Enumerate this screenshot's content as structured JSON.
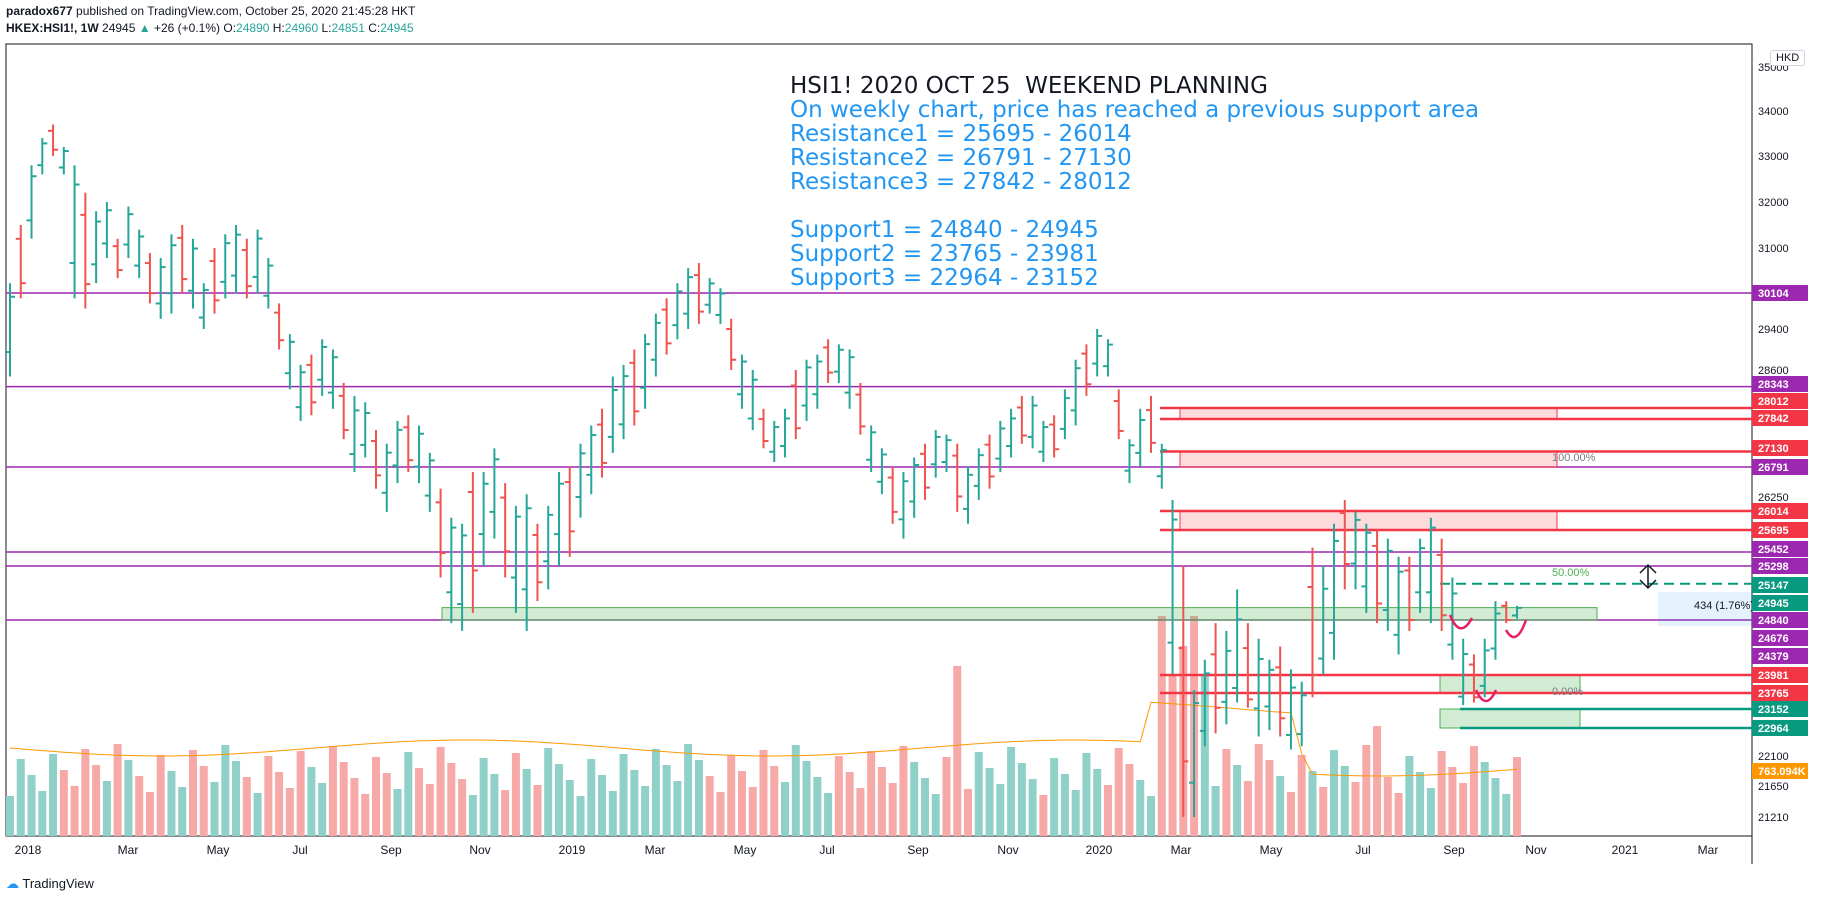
{
  "header": {
    "author": "paradox677",
    "published_text": "published on TradingView.com, October 25, 2020 21:45:28 HKT",
    "symbol": "HKEX:HSI1!, 1W",
    "last": "24945",
    "arrow": "▲",
    "change": "+26 (+0.1%)",
    "open_label": "O:",
    "open": "24890",
    "high_label": "H:",
    "high": "24960",
    "low_label": "L:",
    "low": "24851",
    "close_label": "C:",
    "close": "24945"
  },
  "annotation": {
    "title": "HSI1! 2020 OCT 25  WEEKEND PLANNING",
    "line1": "On weekly chart, price has reached a previous support area",
    "r1": "Resistance1 = 25695 - 26014",
    "r2": "Resistance2 = 26791 - 27130",
    "r3": "Resistance3 = 27842 - 28012",
    "s1": "Support1 = 24840 - 24945",
    "s2": "Support2 = 23765 - 23981",
    "s3": "Support3 = 22964 - 23152"
  },
  "currency_badge": "HKD",
  "footer": {
    "brand": "TradingView"
  },
  "colors": {
    "up": "#26a69a",
    "down": "#ef5350",
    "purple": "#9c27b0",
    "resistance": "#f23645",
    "support": "#089981",
    "volume_up": "#8fd1c8",
    "volume_down": "#f7a9a7",
    "volume_ma": "#ff9800"
  },
  "chart_data": {
    "type": "ohlc",
    "title": "HKEX:HSI1!, 1W",
    "x_tick_labels": [
      "2018",
      "Mar",
      "May",
      "Jul",
      "Sep",
      "Nov",
      "2019",
      "Mar",
      "May",
      "Jul",
      "Sep",
      "Nov",
      "2020",
      "Mar",
      "May",
      "Jul",
      "Sep",
      "Nov",
      "2021",
      "Mar"
    ],
    "y_tick_labels": [
      "35000",
      "34000",
      "33000",
      "32000",
      "31000",
      "30104",
      "29400",
      "28600",
      "27842",
      "26791",
      "26250",
      "25695",
      "25298",
      "24840",
      "24379",
      "23981",
      "23765",
      "23152",
      "22964",
      "22100",
      "21650",
      "21210"
    ],
    "price_axis_badges": [
      {
        "label": "30104",
        "color": "#9c27b0"
      },
      {
        "label": "28343",
        "color": "#9c27b0"
      },
      {
        "label": "28012",
        "color": "#f23645"
      },
      {
        "label": "27842",
        "color": "#f23645"
      },
      {
        "label": "27130",
        "color": "#f23645"
      },
      {
        "label": "26791",
        "color": "#9c27b0"
      },
      {
        "label": "26014",
        "color": "#f23645"
      },
      {
        "label": "25695",
        "color": "#f23645"
      },
      {
        "label": "25452",
        "color": "#9c27b0"
      },
      {
        "label": "25298",
        "color": "#9c27b0"
      },
      {
        "label": "25147",
        "color": "#089981"
      },
      {
        "label": "24945",
        "color": "#089981"
      },
      {
        "label": "24840",
        "color": "#9c27b0"
      },
      {
        "label": "24676",
        "color": "#9c27b0"
      },
      {
        "label": "24379",
        "color": "#9c27b0"
      },
      {
        "label": "23981",
        "color": "#f23645"
      },
      {
        "label": "23765",
        "color": "#f23645"
      },
      {
        "label": "23152",
        "color": "#089981"
      },
      {
        "label": "22964",
        "color": "#089981"
      },
      {
        "label": "763.094K",
        "color": "#ff9800"
      }
    ],
    "horizontal_levels": [
      30104,
      28343,
      26791,
      25452,
      25298,
      24840
    ],
    "resistance_zones": [
      [
        25695,
        26014
      ],
      [
        26791,
        27130
      ],
      [
        27842,
        28012
      ]
    ],
    "support_zones": [
      [
        24840,
        24945
      ],
      [
        23765,
        23981
      ],
      [
        22964,
        23152
      ]
    ],
    "fib_labels": [
      "100.00%",
      "50.00%",
      "0.00%"
    ],
    "measure_label": "434 (1.76%)",
    "last_price": 24945,
    "volume_ma_label": "763.094K",
    "ohlc_path": [
      [
        28500,
        30300
      ],
      [
        30000,
        31500
      ],
      [
        31200,
        32800
      ],
      [
        32600,
        33400
      ],
      [
        33000,
        33700
      ],
      [
        32600,
        33200
      ],
      [
        30000,
        32800
      ],
      [
        29800,
        32200
      ],
      [
        30300,
        31800
      ],
      [
        30800,
        32000
      ],
      [
        30400,
        31200
      ],
      [
        30800,
        31900
      ],
      [
        30400,
        31400
      ],
      [
        29900,
        30900
      ],
      [
        29600,
        30800
      ],
      [
        29700,
        31300
      ],
      [
        30100,
        31500
      ],
      [
        29800,
        31200
      ],
      [
        29400,
        30300
      ],
      [
        29700,
        31000
      ],
      [
        30000,
        31300
      ],
      [
        30100,
        31500
      ],
      [
        30000,
        31200
      ],
      [
        30100,
        31400
      ],
      [
        29800,
        30800
      ],
      [
        29000,
        29900
      ],
      [
        28300,
        29300
      ],
      [
        27800,
        28700
      ],
      [
        27900,
        28900
      ],
      [
        28200,
        29200
      ],
      [
        28000,
        29000
      ],
      [
        27400,
        28400
      ],
      [
        26700,
        28200
      ],
      [
        27000,
        28100
      ],
      [
        26400,
        27600
      ],
      [
        26000,
        27300
      ],
      [
        26500,
        27800
      ],
      [
        26700,
        27900
      ],
      [
        26500,
        27700
      ],
      [
        26000,
        27100
      ],
      [
        25200,
        26400
      ],
      [
        24800,
        25900
      ],
      [
        24700,
        25800
      ],
      [
        24900,
        26700
      ],
      [
        25300,
        26700
      ],
      [
        25600,
        27200
      ],
      [
        25200,
        26500
      ],
      [
        24900,
        26100
      ],
      [
        24700,
        26300
      ],
      [
        25000,
        25800
      ],
      [
        25100,
        26100
      ],
      [
        25300,
        26700
      ],
      [
        25400,
        26800
      ],
      [
        25900,
        27300
      ],
      [
        26300,
        27700
      ],
      [
        26600,
        28000
      ],
      [
        27100,
        28500
      ],
      [
        27400,
        28700
      ],
      [
        27700,
        29000
      ],
      [
        28000,
        29300
      ],
      [
        28500,
        29700
      ],
      [
        28900,
        30000
      ],
      [
        29200,
        30300
      ],
      [
        29400,
        30600
      ],
      [
        29500,
        30700
      ],
      [
        29700,
        30400
      ],
      [
        29500,
        30200
      ],
      [
        28600,
        29600
      ],
      [
        28000,
        28900
      ],
      [
        27600,
        28600
      ],
      [
        27200,
        28000
      ],
      [
        26900,
        27800
      ],
      [
        27000,
        28000
      ],
      [
        27400,
        28600
      ],
      [
        27800,
        28800
      ],
      [
        28000,
        28900
      ],
      [
        28400,
        29200
      ],
      [
        28400,
        29100
      ],
      [
        28000,
        29000
      ],
      [
        27500,
        28400
      ],
      [
        26700,
        27700
      ],
      [
        26300,
        27200
      ],
      [
        25800,
        26800
      ],
      [
        25600,
        26700
      ],
      [
        25900,
        27000
      ],
      [
        26200,
        27300
      ],
      [
        26600,
        27600
      ],
      [
        26700,
        27500
      ],
      [
        26000,
        27300
      ],
      [
        25800,
        26800
      ],
      [
        26200,
        27200
      ],
      [
        26400,
        27500
      ],
      [
        26700,
        27800
      ],
      [
        27000,
        28000
      ],
      [
        27300,
        28200
      ],
      [
        27200,
        28200
      ],
      [
        26900,
        27800
      ],
      [
        27000,
        27900
      ],
      [
        27400,
        28300
      ],
      [
        27700,
        28800
      ],
      [
        28200,
        29100
      ],
      [
        28500,
        29400
      ],
      [
        28500,
        29200
      ],
      [
        27400,
        28300
      ],
      [
        26500,
        27400
      ],
      [
        26800,
        28000
      ],
      [
        27100,
        28200
      ],
      [
        26400,
        27300
      ],
      [
        24000,
        26200
      ],
      [
        21200,
        25300
      ],
      [
        21000,
        23800
      ],
      [
        22400,
        24300
      ],
      [
        22800,
        24800
      ],
      [
        23000,
        24700
      ],
      [
        23400,
        25100
      ],
      [
        23200,
        24800
      ],
      [
        22700,
        24600
      ],
      [
        22900,
        24300
      ],
      [
        22700,
        24500
      ],
      [
        22300,
        24100
      ],
      [
        22400,
        23900
      ],
      [
        23600,
        25500
      ],
      [
        24000,
        25300
      ],
      [
        24300,
        25800
      ],
      [
        25100,
        26200
      ],
      [
        25100,
        26000
      ],
      [
        24900,
        25800
      ],
      [
        24800,
        25700
      ],
      [
        24700,
        25600
      ],
      [
        24400,
        25400
      ],
      [
        24700,
        25400
      ],
      [
        24900,
        25600
      ],
      [
        24800,
        25900
      ],
      [
        24700,
        25600
      ],
      [
        24300,
        25200
      ],
      [
        23300,
        24600
      ],
      [
        23400,
        24400
      ],
      [
        23600,
        24600
      ],
      [
        24300,
        25000
      ],
      [
        24800,
        25000
      ],
      [
        24851,
        24960
      ]
    ],
    "volume_bars": 133
  }
}
